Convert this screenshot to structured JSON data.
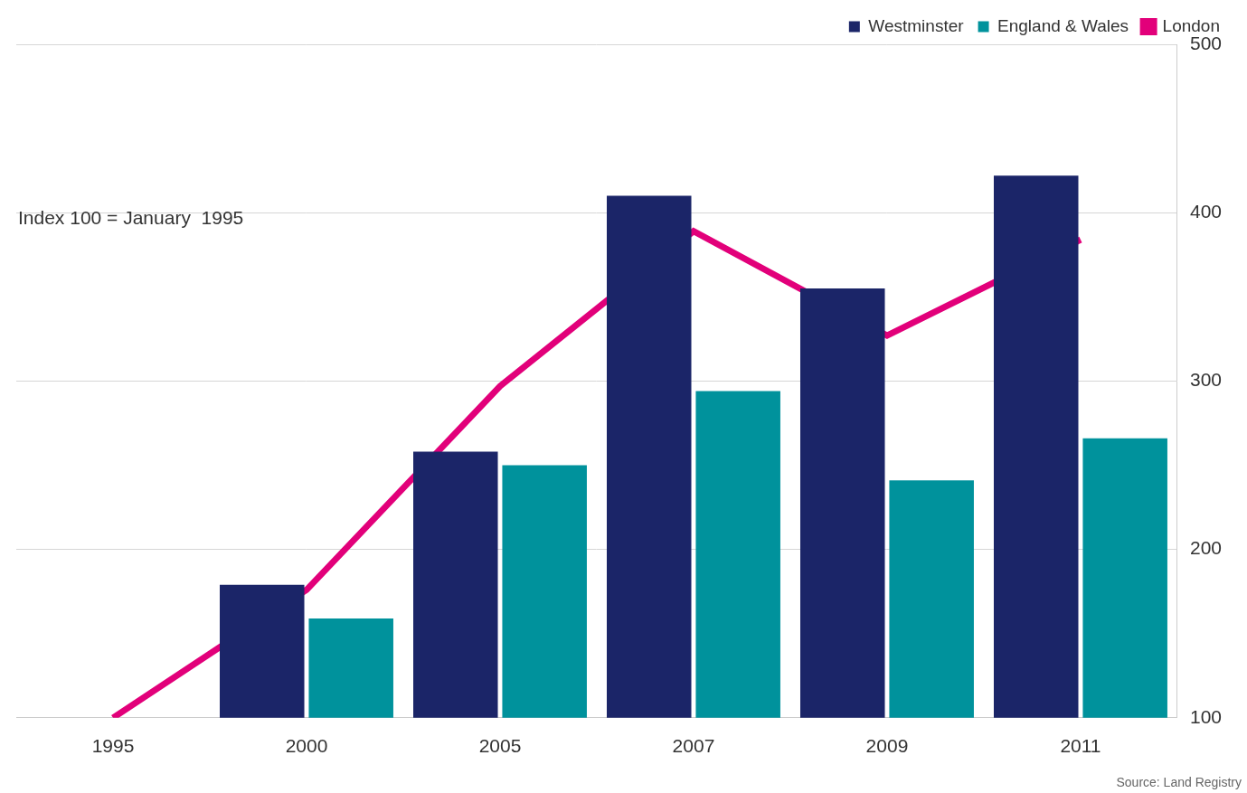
{
  "chart_data": {
    "type": "bar",
    "annotations": [
      "Index 100 = January  1995",
      "Source: Land Registry"
    ],
    "categories": [
      "1995",
      "2000",
      "2005",
      "2007",
      "2009",
      "2011"
    ],
    "series": [
      {
        "name": "Westminster",
        "type": "bar",
        "color": "#1b2568",
        "values": [
          null,
          179,
          258,
          410,
          355,
          422
        ]
      },
      {
        "name": "England & Wales",
        "type": "bar",
        "color": "#00929c",
        "values": [
          null,
          159,
          250,
          294,
          241,
          266
        ]
      },
      {
        "name": "London",
        "type": "line",
        "color": "#e2007a",
        "values": [
          100,
          176,
          297,
          389,
          327,
          384
        ]
      }
    ],
    "ylim": [
      100,
      500
    ],
    "yticks": [
      100,
      200,
      300,
      400,
      500
    ],
    "grid": true,
    "legend": "top right"
  }
}
